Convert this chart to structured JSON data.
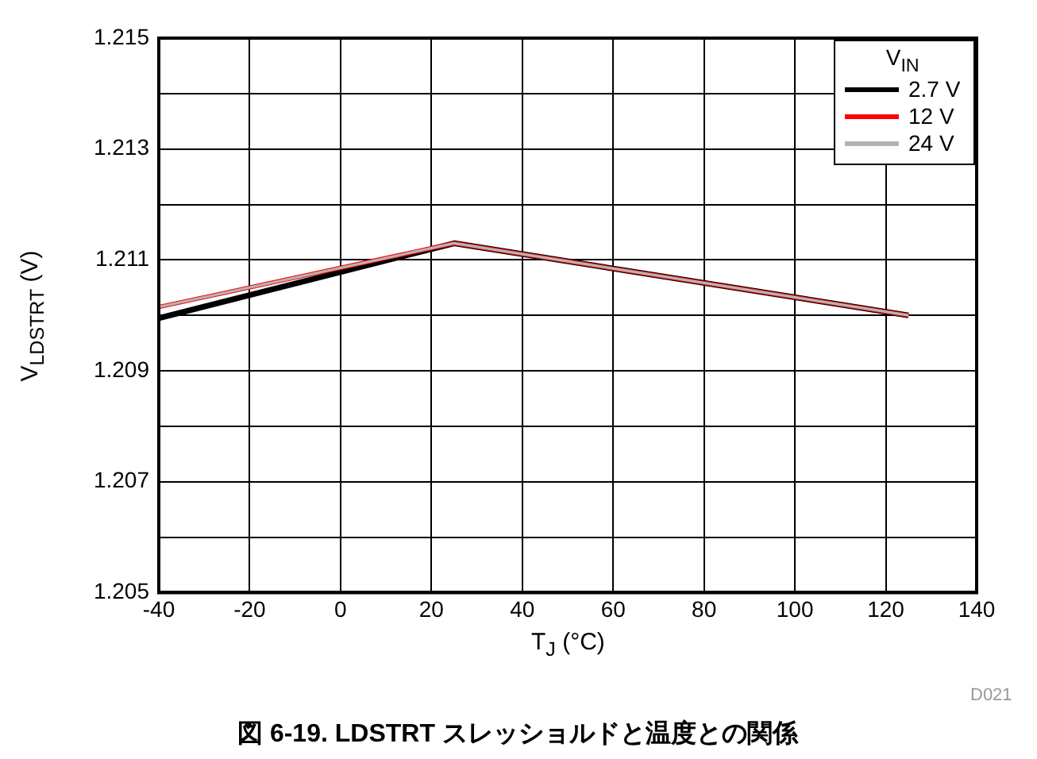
{
  "chart_data": {
    "type": "line",
    "title": "図 6-19. LDSTRT スレッショルドと温度との関係",
    "xlabel": "T$_{J}$ (°C)",
    "ylabel": "V$_{LDSTRT}$ (V)",
    "legend_title": "V$_{IN}$",
    "annotations": [
      "D021"
    ],
    "x": [
      -40,
      25,
      125
    ],
    "series": [
      {
        "name": "2.7 V",
        "color": "#000000",
        "values": [
          1.20995,
          1.2113,
          1.21
        ]
      },
      {
        "name": "12 V",
        "color": "#ff0000",
        "values": [
          1.21015,
          1.2113,
          1.21
        ]
      },
      {
        "name": "24 V",
        "color": "#b4b4b4",
        "values": [
          1.21015,
          1.2113,
          1.21
        ]
      }
    ],
    "xlim": [
      -40,
      140
    ],
    "xticks": [
      -40,
      -20,
      0,
      20,
      40,
      60,
      80,
      100,
      120,
      140
    ],
    "ylim": [
      1.205,
      1.215
    ],
    "yticks": [
      1.205,
      {
        "value": 1.206,
        "label": null
      },
      1.207,
      {
        "value": 1.208,
        "label": null
      },
      1.209,
      {
        "value": 1.21,
        "label": null
      },
      1.211,
      {
        "value": 1.212,
        "label": null
      },
      1.213,
      {
        "value": 1.214,
        "label": null
      },
      1.215
    ],
    "grid": true,
    "legend": "top right",
    "marker": "none",
    "line_style": "solid"
  }
}
